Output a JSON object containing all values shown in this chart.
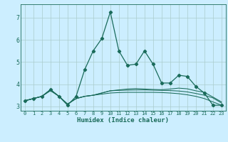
{
  "title": "",
  "xlabel": "Humidex (Indice chaleur)",
  "bg_color": "#cceeff",
  "grid_color": "#aacccc",
  "line_color": "#1a6b5a",
  "xlim": [
    -0.5,
    23.5
  ],
  "ylim": [
    2.8,
    7.6
  ],
  "yticks": [
    3,
    4,
    5,
    6,
    7
  ],
  "xticks": [
    0,
    1,
    2,
    3,
    4,
    5,
    6,
    7,
    8,
    9,
    10,
    11,
    12,
    13,
    14,
    15,
    16,
    17,
    18,
    19,
    20,
    21,
    22,
    23
  ],
  "series": [
    [
      3.25,
      3.35,
      3.45,
      3.75,
      3.45,
      3.05,
      3.45,
      4.65,
      5.5,
      6.05,
      7.25,
      5.5,
      4.85,
      4.9,
      5.5,
      4.9,
      4.05,
      4.05,
      4.4,
      4.35,
      3.9,
      3.6,
      3.05,
      3.05
    ],
    [
      3.25,
      3.35,
      3.45,
      3.75,
      3.45,
      3.1,
      3.35,
      3.45,
      3.5,
      3.55,
      3.6,
      3.62,
      3.63,
      3.63,
      3.63,
      3.63,
      3.62,
      3.6,
      3.57,
      3.52,
      3.45,
      3.35,
      3.2,
      3.05
    ],
    [
      3.25,
      3.35,
      3.45,
      3.75,
      3.45,
      3.1,
      3.35,
      3.45,
      3.5,
      3.6,
      3.7,
      3.72,
      3.73,
      3.74,
      3.74,
      3.73,
      3.72,
      3.71,
      3.69,
      3.65,
      3.58,
      3.5,
      3.38,
      3.15
    ],
    [
      3.25,
      3.35,
      3.45,
      3.7,
      3.45,
      3.1,
      3.35,
      3.45,
      3.5,
      3.6,
      3.7,
      3.74,
      3.78,
      3.8,
      3.78,
      3.76,
      3.75,
      3.78,
      3.82,
      3.79,
      3.7,
      3.63,
      3.42,
      3.2
    ]
  ]
}
